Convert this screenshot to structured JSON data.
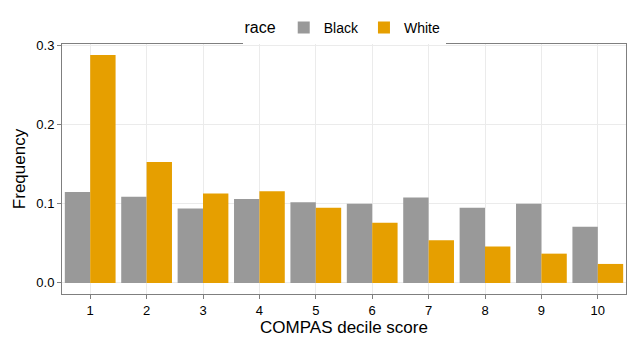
{
  "chart_data": {
    "type": "bar",
    "x_label": "COMPAS decile score",
    "y_label": "Frequency",
    "legend_title": "race",
    "legend": "top",
    "categories": [
      "1",
      "2",
      "3",
      "4",
      "5",
      "6",
      "7",
      "8",
      "9",
      "10"
    ],
    "series": [
      {
        "name": "Black",
        "color": "#999999",
        "values": [
          0.115,
          0.109,
          0.094,
          0.106,
          0.102,
          0.1,
          0.108,
          0.095,
          0.1,
          0.071
        ]
      },
      {
        "name": "White",
        "color": "#E69F00",
        "values": [
          0.288,
          0.153,
          0.113,
          0.116,
          0.095,
          0.076,
          0.054,
          0.046,
          0.037,
          0.024
        ]
      }
    ],
    "ylim": [
      -0.014,
      0.302
    ],
    "yticks": [
      {
        "value": 0,
        "label": "0.0"
      },
      0.1,
      0.2,
      0.3
    ],
    "grid": true
  }
}
